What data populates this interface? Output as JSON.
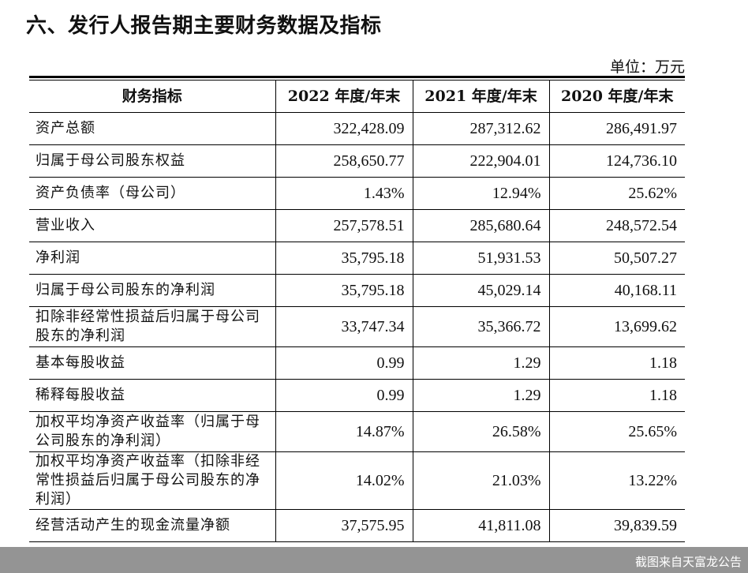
{
  "section_title": "六、发行人报告期主要财务数据及指标",
  "unit_note": "单位：万元",
  "table": {
    "headers": [
      "财务指标",
      "2022 年度/年末",
      "2021 年度/年末",
      "2020 年度/年末"
    ],
    "rows": [
      {
        "label": "资产总额",
        "v2022": "322,428.09",
        "v2021": "287,312.62",
        "v2020": "286,491.97"
      },
      {
        "label": "归属于母公司股东权益",
        "v2022": "258,650.77",
        "v2021": "222,904.01",
        "v2020": "124,736.10"
      },
      {
        "label": "资产负债率（母公司）",
        "v2022": "1.43%",
        "v2021": "12.94%",
        "v2020": "25.62%"
      },
      {
        "label": "营业收入",
        "v2022": "257,578.51",
        "v2021": "285,680.64",
        "v2020": "248,572.54"
      },
      {
        "label": "净利润",
        "v2022": "35,795.18",
        "v2021": "51,931.53",
        "v2020": "50,507.27"
      },
      {
        "label": "归属于母公司股东的净利润",
        "v2022": "35,795.18",
        "v2021": "45,029.14",
        "v2020": "40,168.11"
      },
      {
        "label": "扣除非经常性损益后归属于母公司股东的净利润",
        "v2022": "33,747.34",
        "v2021": "35,366.72",
        "v2020": "13,699.62"
      },
      {
        "label": "基本每股收益",
        "v2022": "0.99",
        "v2021": "1.29",
        "v2020": "1.18"
      },
      {
        "label": "稀释每股收益",
        "v2022": "0.99",
        "v2021": "1.29",
        "v2020": "1.18"
      },
      {
        "label": "加权平均净资产收益率（归属于母公司股东的净利润）",
        "v2022": "14.87%",
        "v2021": "26.58%",
        "v2020": "25.65%"
      },
      {
        "label": "加权平均净资产收益率（扣除非经常性损益后归属于母公司股东的净利润）",
        "v2022": "14.02%",
        "v2021": "21.03%",
        "v2020": "13.22%"
      },
      {
        "label": "经营活动产生的现金流量净额",
        "v2022": "37,575.95",
        "v2021": "41,811.08",
        "v2020": "39,839.59"
      }
    ]
  },
  "watermark": "截图来自天富龙公告"
}
